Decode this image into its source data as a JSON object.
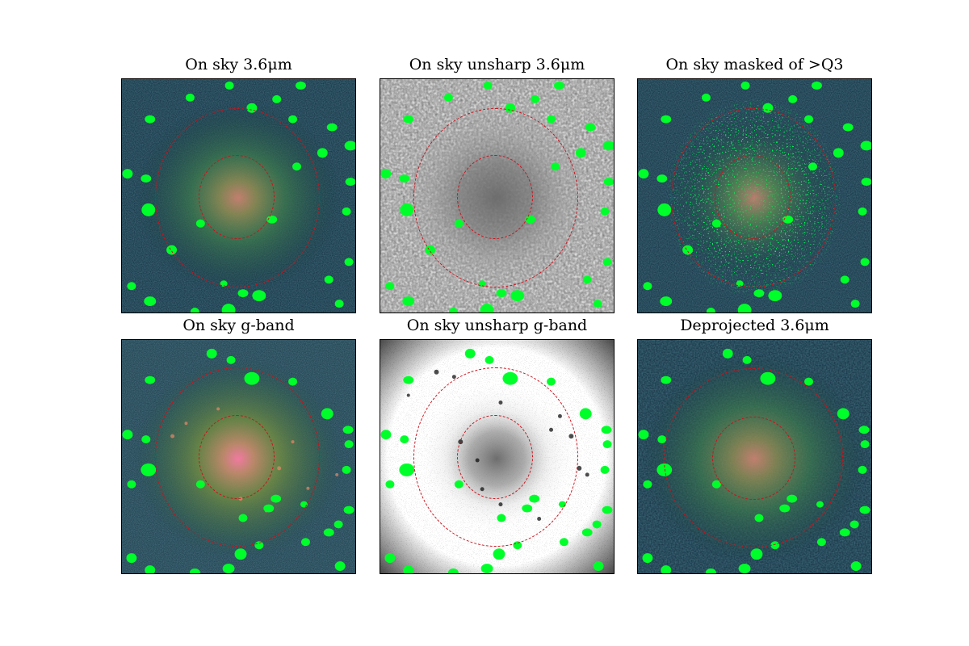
{
  "figure": {
    "panels": [
      {
        "id": "p1",
        "title": "On sky 3.6μm",
        "style": "sky",
        "tint": "#46dc46"
      },
      {
        "id": "p2",
        "title": "On sky unsharp 3.6μm",
        "style": "unsharp-coarse",
        "tint": "#9a9a9a"
      },
      {
        "id": "p3",
        "title": "On sky masked of >Q3",
        "style": "masked",
        "tint": "#22ff22"
      },
      {
        "id": "p4",
        "title": "On sky g-band",
        "style": "sky-g",
        "tint": "#ff8aa8"
      },
      {
        "id": "p5",
        "title": "On sky unsharp g-band",
        "style": "unsharp-fine",
        "tint": "#9a9a9a"
      },
      {
        "id": "p6",
        "title": "Deprojected 3.6μm",
        "style": "deprojected",
        "tint": "#46dc46"
      }
    ],
    "colors": {
      "mask": "#00ff2a",
      "ring": "#c8141e",
      "background_dark": "#0f2434",
      "galaxy_mid": "#3d6b4e",
      "galaxy_core": "#d58a7a"
    }
  }
}
